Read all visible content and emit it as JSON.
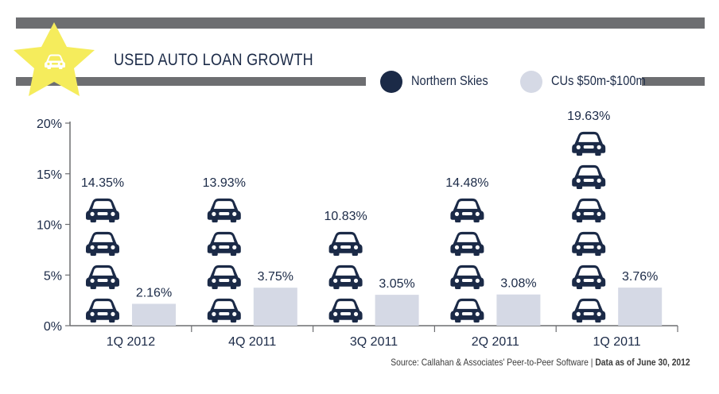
{
  "colors": {
    "band": "#6d6e71",
    "northern_skies": "#1b2a47",
    "cus": "#d5d9e5",
    "star": "#f5ec5c"
  },
  "icons": {
    "badge": "car-icon",
    "unit": "car-icon"
  },
  "chart_data": {
    "type": "bar",
    "title": "USED AUTO LOAN GROWTH",
    "categories": [
      "1Q 2012",
      "4Q 2011",
      "3Q 2011",
      "2Q 2011",
      "1Q 2011"
    ],
    "series": [
      {
        "name": "Northern Skies",
        "values": [
          14.35,
          13.93,
          10.83,
          14.48,
          19.63
        ],
        "labels": [
          "14.35%",
          "13.93%",
          "10.83%",
          "14.48%",
          "19.63%"
        ],
        "icon_counts": [
          4,
          4,
          3,
          4,
          6
        ]
      },
      {
        "name": "CUs $50m-$100m",
        "values": [
          2.16,
          3.75,
          3.05,
          3.08,
          3.76
        ],
        "labels": [
          "2.16%",
          "3.75%",
          "3.05%",
          "3.08%",
          "3.76%"
        ]
      }
    ],
    "yticks": [
      "0%",
      "5%",
      "10%",
      "15%",
      "20%"
    ],
    "ylim": [
      0,
      20
    ],
    "legend": "top-right",
    "grid": false
  },
  "source": {
    "left": "Source: Callahan & Associates' Peer-to-Peer Software",
    "right": "Data as of June 30, 2012"
  }
}
